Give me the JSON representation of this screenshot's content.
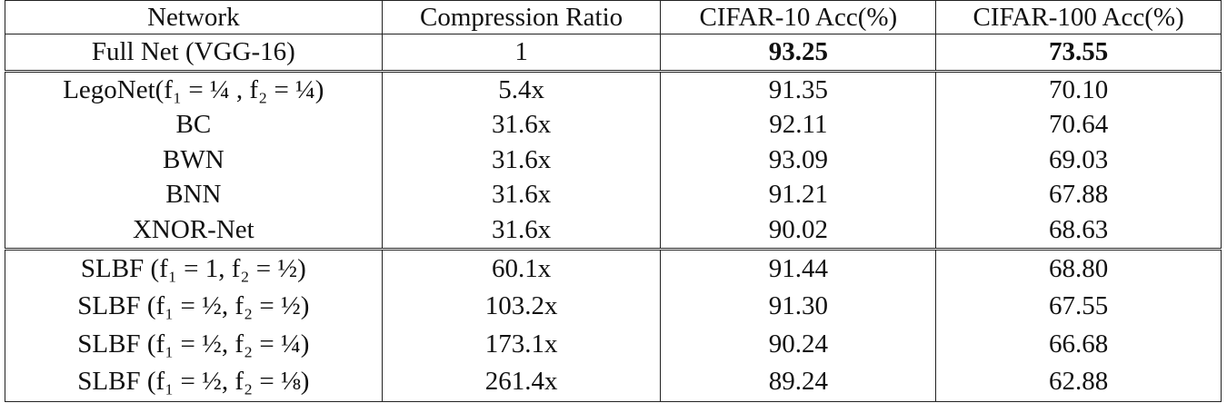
{
  "table": {
    "header": [
      "Network",
      "Compression Ratio",
      "CIFAR-10 Acc(%)",
      "CIFAR-100 Acc(%)"
    ],
    "rows": [
      [
        "Full Net (VGG-16)",
        "1",
        "93.25",
        "73.55"
      ],
      [
        "LegoNet(f₁ = ¼ , f₂ = ¼)",
        "5.4x",
        "91.35",
        "70.10"
      ],
      [
        "BC",
        "31.6x",
        "92.11",
        "70.64"
      ],
      [
        "BWN",
        "31.6x",
        "93.09",
        "69.03"
      ],
      [
        "BNN",
        "31.6x",
        "91.21",
        "67.88"
      ],
      [
        "XNOR-Net",
        "31.6x",
        "90.02",
        "68.63"
      ],
      [
        "SLBF (f₁ = 1, f₂ = ½)",
        "60.1x",
        "91.44",
        "68.80"
      ],
      [
        "SLBF (f₁ = ½, f₂ = ½)",
        "103.2x",
        "91.30",
        "67.55"
      ],
      [
        "SLBF (f₁ = ½, f₂ = ¼)",
        "173.1x",
        "90.24",
        "66.68"
      ],
      [
        "SLBF (f₁ = ½, f₂ = ⅛)",
        "261.4x",
        "89.24",
        "62.88"
      ]
    ]
  }
}
